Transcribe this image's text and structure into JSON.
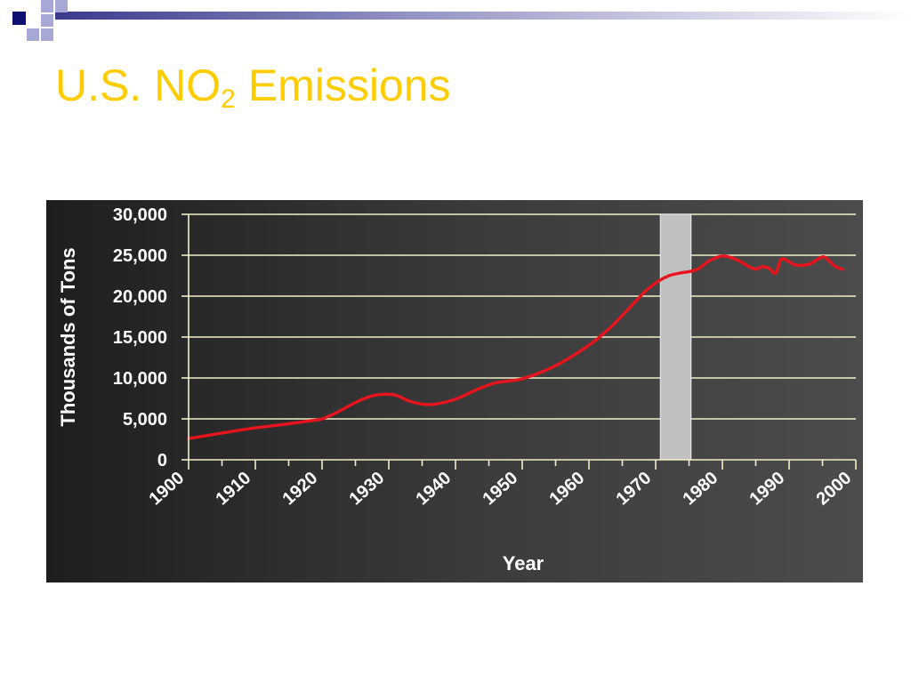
{
  "slide": {
    "title_main": "U.S. NO",
    "title_sub": "2",
    "title_rest": " Emissions"
  },
  "colors": {
    "title": "#ffcc00",
    "decoration_navy": "#101070",
    "decoration_lavender": "#9f9fd2",
    "chart_background_dark": "#262626",
    "chart_background_light": "#4a4a4a",
    "gridline": "#f2f0c8",
    "series_line": "#e8141d",
    "highlight_band": "#c0c0c0",
    "axis_text": "#ffffff"
  },
  "chart_data": {
    "type": "line",
    "title": "",
    "xlabel": "Year",
    "ylabel": "Thousands of Tons",
    "xlim": [
      1900,
      2000
    ],
    "ylim": [
      0,
      30000
    ],
    "x_ticks": [
      1900,
      1910,
      1920,
      1930,
      1940,
      1950,
      1960,
      1970,
      1980,
      1990,
      2000
    ],
    "x_tick_labels": [
      "1900",
      "1910",
      "1920",
      "1930",
      "1940",
      "1950",
      "1960",
      "1970",
      "1980",
      "1990",
      "2000"
    ],
    "y_ticks": [
      0,
      5000,
      10000,
      15000,
      20000,
      25000,
      30000
    ],
    "y_tick_labels": [
      "0",
      "5,000",
      "10,000",
      "15,000",
      "20,000",
      "25,000",
      "30,000"
    ],
    "grid": true,
    "legend": "none",
    "highlight_band": {
      "x_start": 1970.7,
      "x_end": 1975.3
    },
    "series": [
      {
        "color": "#e8141d",
        "points": [
          [
            1900,
            2600
          ],
          [
            1903,
            3000
          ],
          [
            1906,
            3400
          ],
          [
            1910,
            3900
          ],
          [
            1915,
            4400
          ],
          [
            1918,
            4750
          ],
          [
            1920,
            5000
          ],
          [
            1922,
            5700
          ],
          [
            1925,
            7000
          ],
          [
            1927,
            7700
          ],
          [
            1929,
            8000
          ],
          [
            1931,
            7900
          ],
          [
            1933,
            7200
          ],
          [
            1935,
            6800
          ],
          [
            1937,
            6800
          ],
          [
            1940,
            7400
          ],
          [
            1943,
            8500
          ],
          [
            1946,
            9400
          ],
          [
            1950,
            9900
          ],
          [
            1955,
            11500
          ],
          [
            1960,
            14000
          ],
          [
            1963,
            16000
          ],
          [
            1966,
            18500
          ],
          [
            1969,
            21000
          ],
          [
            1972,
            22500
          ],
          [
            1976,
            23200
          ],
          [
            1978,
            24300
          ],
          [
            1980,
            24900
          ],
          [
            1982,
            24500
          ],
          [
            1984,
            23600
          ],
          [
            1985,
            23300
          ],
          [
            1986,
            23600
          ],
          [
            1987,
            23400
          ],
          [
            1988,
            22800
          ],
          [
            1988.8,
            24500
          ],
          [
            1990,
            24200
          ],
          [
            1991,
            23800
          ],
          [
            1993,
            23900
          ],
          [
            1995,
            24800
          ],
          [
            1996,
            24300
          ],
          [
            1997,
            23600
          ],
          [
            1998,
            23300
          ]
        ]
      }
    ]
  }
}
